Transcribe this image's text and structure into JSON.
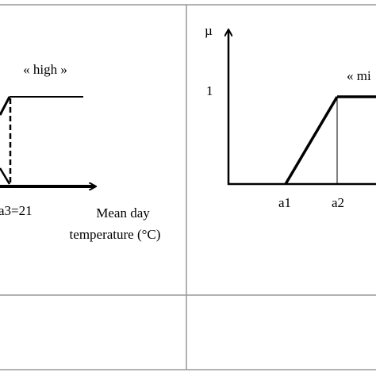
{
  "left_panel": {
    "label": "« high »",
    "tick_label": "a3=21",
    "axis_label_line1": "Mean day",
    "axis_label_line2": "temperature (°C)"
  },
  "right_panel": {
    "y_axis_label": "µ",
    "y_tick": "1",
    "label": "« mi",
    "x_ticks": [
      "a1",
      "a2"
    ]
  }
}
